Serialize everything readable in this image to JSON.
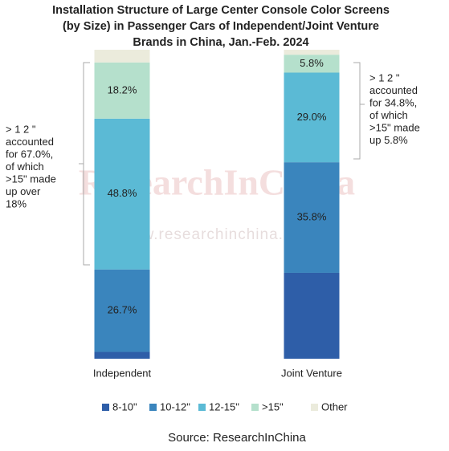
{
  "chart_data": {
    "type": "stacked-bar",
    "title": [
      "Installation Structure of Large Center Console Color Screens",
      "(by Size) in Passenger Cars of Independent/Joint Venture",
      "Brands in China, Jan.-Feb. 2024"
    ],
    "categories": [
      "Independent",
      "Joint Venture"
    ],
    "series": [
      {
        "name": "8-10\"",
        "color": "#2e5ea8",
        "values": [
          2.2,
          27.8
        ],
        "value_labels": [
          null,
          null
        ]
      },
      {
        "name": "10-12\"",
        "color": "#3a85bd",
        "values": [
          26.7,
          35.8
        ],
        "value_labels": [
          "26.7%",
          "35.8%"
        ]
      },
      {
        "name": "12-15\"",
        "color": "#5bbad5",
        "values": [
          48.8,
          29.0
        ],
        "value_labels": [
          "48.8%",
          "29.0%"
        ]
      },
      {
        "name": ">15\"",
        "color": "#b5e0cc",
        "values": [
          18.2,
          5.8
        ],
        "value_labels": [
          "18.2%",
          "5.8%"
        ]
      },
      {
        "name": "Other",
        "color": "#ebebdc",
        "values": [
          4.1,
          1.6
        ],
        "value_labels": [
          null,
          null
        ]
      }
    ],
    "ylim": [
      0,
      100
    ],
    "annotations": [
      [
        "> 1 2 \"",
        "accounted",
        "for 67.0%,",
        "of which",
        ">15\" made",
        "up over",
        "18%"
      ],
      [
        "> 1 2 \"",
        "accounted",
        "for 34.8%,",
        "of which",
        ">15\" made",
        "up 5.8%"
      ]
    ],
    "watermark": [
      "ResearchInChina",
      "www.researchinchina.com"
    ],
    "source": "Source: ResearchInChina"
  }
}
